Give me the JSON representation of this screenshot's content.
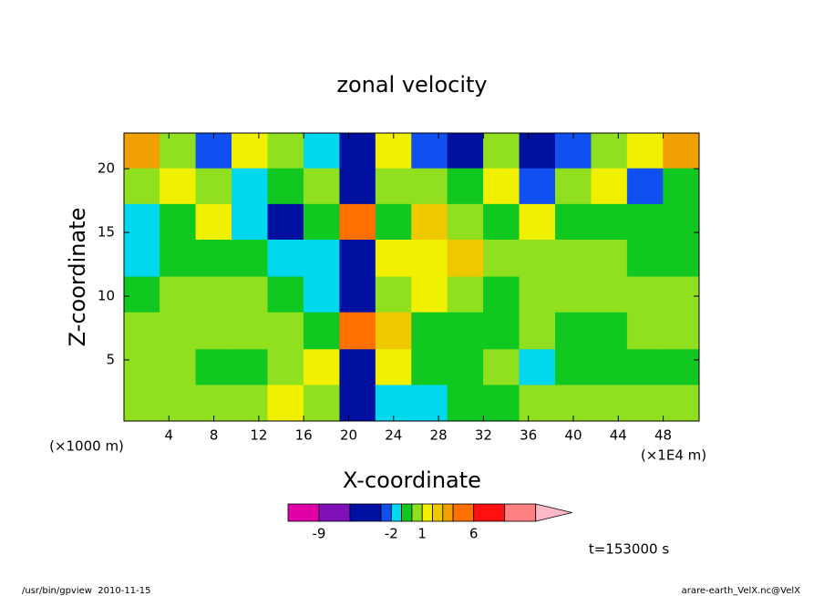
{
  "chart_data": {
    "type": "contour",
    "title": "zonal velocity",
    "x_label": "X-coordinate",
    "y_label": "Z-coordinate",
    "x_unit": "(×1E4 m)",
    "y_unit": "(×1000 m)",
    "time_label": "t=153000 s",
    "footer_left": "/usr/bin/gpview  2010-11-15",
    "footer_right": "arare-earth_VelX.nc@VelX",
    "xlim": [
      0,
      51.2
    ],
    "ylim": [
      0.2,
      22.8
    ],
    "xticks": [
      4,
      8,
      12,
      16,
      20,
      24,
      28,
      32,
      36,
      40,
      44,
      48
    ],
    "yticks": [
      5,
      10,
      15,
      20
    ],
    "x": [
      1.6,
      4.8,
      8,
      11.2,
      14.4,
      17.6,
      20.8,
      24,
      27.2,
      30.4,
      33.6,
      36.8,
      40,
      43.2,
      46.4,
      49.6
    ],
    "y": [
      1.6,
      4.5,
      7.3,
      10.2,
      13,
      15.9,
      18.7,
      21.5
    ],
    "z": [
      [
        0.5,
        0.5,
        0.5,
        0.5,
        1.5,
        0.5,
        -5,
        -1.5,
        -2,
        -0.5,
        -0.5,
        0.5,
        0.5,
        0.5,
        0.5,
        0.5
      ],
      [
        0.5,
        0.5,
        -0.5,
        -0.5,
        0.5,
        1.5,
        -5,
        1.5,
        -0.5,
        -0.5,
        0.5,
        -1.5,
        -0.5,
        -0.5,
        -0.5,
        -0.5
      ],
      [
        0.5,
        0.5,
        0.5,
        0.5,
        0.5,
        -0.5,
        5,
        2.5,
        -0.5,
        -0.5,
        -0.5,
        0.5,
        -0.5,
        -0.5,
        0.5,
        0.5
      ],
      [
        -0.5,
        0.5,
        0.5,
        0.5,
        -0.5,
        -1.5,
        -5,
        0.5,
        1.5,
        0.5,
        -0.5,
        0.5,
        0.5,
        0.5,
        0.5,
        0.5
      ],
      [
        -1.5,
        -0.5,
        -0.5,
        -0.5,
        -1.5,
        -1.5,
        -6,
        1.5,
        1.5,
        2.5,
        0.5,
        0.5,
        0.5,
        0.5,
        -0.5,
        -0.5
      ],
      [
        -1.5,
        -0.5,
        1.5,
        -1.5,
        -3.5,
        -0.5,
        4,
        -0.5,
        2.5,
        0.5,
        -0.5,
        1.5,
        -0.5,
        -0.5,
        -0.5,
        -0.5
      ],
      [
        0.5,
        1.5,
        0.5,
        -1.5,
        -0.5,
        0.5,
        -4,
        0.5,
        0.5,
        -0.5,
        1.5,
        -2.5,
        0.5,
        1.5,
        -2.5,
        -0.5
      ],
      [
        3.5,
        0.5,
        -2.5,
        1.5,
        0.5,
        -1.5,
        -3.5,
        1.5,
        -2.5,
        -5,
        0.5,
        -5,
        -2.5,
        0.5,
        1.5,
        3.5
      ]
    ],
    "levels": [
      -12,
      -9,
      -6,
      -3,
      -2,
      -1,
      0,
      1,
      2,
      3,
      4,
      6,
      9,
      12
    ],
    "colors": [
      "#e000a8",
      "#8010b8",
      "#0010a0",
      "#1050f0",
      "#00d8f0",
      "#10c820",
      "#90e020",
      "#f0f000",
      "#f0c800",
      "#f0a000",
      "#ff7000",
      "#ff1010",
      "#ff8080"
    ],
    "extend_color": "#ffb8c8",
    "colorbar_ticks": [
      -9,
      -2,
      1,
      6
    ]
  }
}
